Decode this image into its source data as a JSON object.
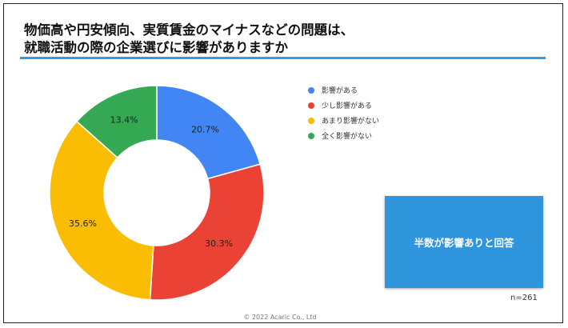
{
  "title": {
    "line1": "物価高や円安傾向、実質賃金のマイナスなどの問題は、",
    "line2": "就職活動の際の企業選びに影響がありますか"
  },
  "chart_data": {
    "type": "pie",
    "variant": "donut",
    "title": "物価高や円安傾向、実質賃金のマイナスなどの問題は、就職活動の際の企業選びに影響がありますか",
    "categories": [
      "影響がある",
      "少し影響がある",
      "あまり影響がない",
      "全く影響がない"
    ],
    "values": [
      20.7,
      30.3,
      35.6,
      13.4
    ],
    "labels": [
      "20.7%",
      "30.3%",
      "35.6%",
      "13.4%"
    ],
    "colors": [
      "#4285f4",
      "#ea4335",
      "#fbbc04",
      "#34a853"
    ],
    "legend_position": "right"
  },
  "callout": {
    "text": "半数が影響ありと回答"
  },
  "sample_size": "n=261",
  "copyright": "© 2022 Acaric Co., Ltd"
}
